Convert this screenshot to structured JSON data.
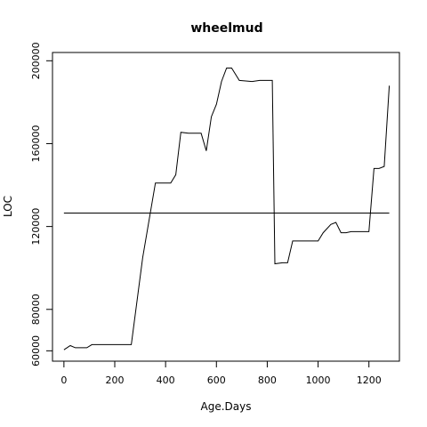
{
  "chart_data": {
    "type": "line",
    "title": "wheelmud",
    "xlabel": "Age.Days",
    "ylabel": "LOC",
    "xlim": [
      -45,
      1320
    ],
    "ylim": [
      55000,
      204000
    ],
    "x_ticks": [
      0,
      200,
      400,
      600,
      800,
      1000,
      1200
    ],
    "y_ticks": [
      60000,
      80000,
      120000,
      160000,
      200000
    ],
    "grid": false,
    "legend": "none",
    "series": [
      {
        "x": [
          0,
          25,
          45,
          90,
          110,
          130,
          265,
          310,
          360,
          420,
          440,
          460,
          490,
          540,
          560,
          580,
          600,
          620,
          640,
          660,
          690,
          740,
          770,
          820,
          830,
          860,
          880,
          900,
          940,
          970,
          1000,
          1020,
          1050,
          1070,
          1090,
          1110,
          1130,
          1160,
          1200,
          1220,
          1240,
          1260,
          1280
        ],
        "y": [
          60500,
          62500,
          61500,
          61500,
          63000,
          63000,
          63000,
          105000,
          141000,
          141000,
          145000,
          165500,
          165000,
          165000,
          156500,
          173000,
          179000,
          190000,
          196500,
          196500,
          190500,
          190000,
          190500,
          190500,
          102000,
          102500,
          102500,
          113000,
          113000,
          113000,
          113000,
          117000,
          121000,
          122000,
          117000,
          117000,
          117500,
          117500,
          117500,
          148000,
          148000,
          149000,
          188000
        ]
      }
    ],
    "reference_line": {
      "y": 126500,
      "x_range": [
        0,
        1280
      ]
    }
  }
}
